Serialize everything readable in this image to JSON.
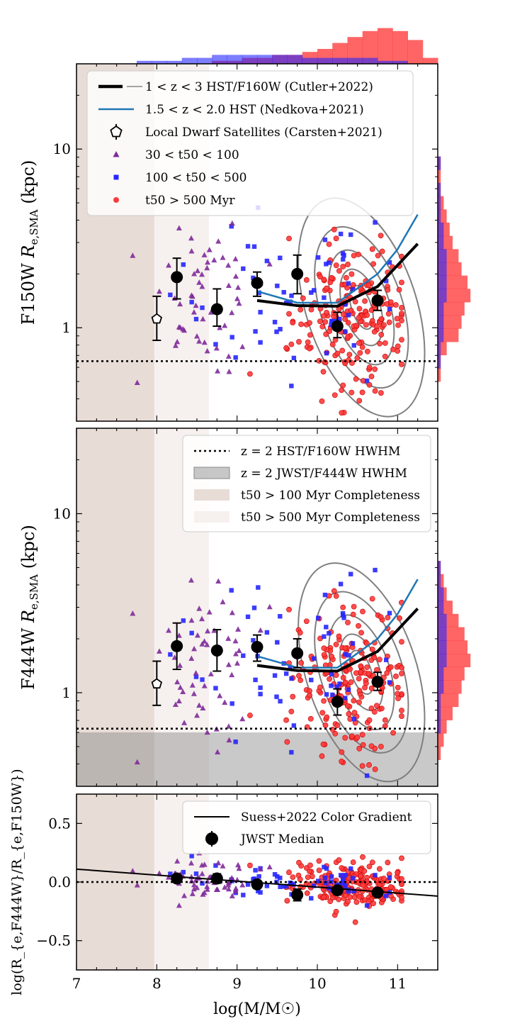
{
  "chart_data": [
    {
      "type": "scatter",
      "panel": "top",
      "ylabel": "F150W R_{e,SMA} (kpc)",
      "ylabel_parts": {
        "band": "F150W",
        "sym": "R",
        "sub": "e,SMA",
        "unit": "(kpc)"
      },
      "y_log": true,
      "ylim": [
        0.3,
        30
      ],
      "xlim": [
        7,
        11.5
      ],
      "yticks": [
        {
          "v": 1,
          "label": "1"
        },
        {
          "v": 10,
          "label": "10"
        }
      ],
      "hwhm_line": 0.65,
      "legend": [
        {
          "kind": "thickline",
          "text": "1 < z < 3  HST/F160W (Cutler+2022)"
        },
        {
          "kind": "blueline",
          "text": "1.5 < z < 2.0  HST (Nedkova+2021)"
        },
        {
          "kind": "pentagon",
          "text": "Local Dwarf Satellites (Carsten+2021)"
        },
        {
          "kind": "triangle",
          "text": "30 < t50 < 100"
        },
        {
          "kind": "square",
          "text": "100 < t50 < 500"
        },
        {
          "kind": "circle",
          "text": "t50 > 500 Myr"
        }
      ],
      "cutler": {
        "x": [
          9.25,
          9.75,
          10.25,
          10.75,
          11.25
        ],
        "y": [
          1.42,
          1.33,
          1.32,
          1.7,
          2.95
        ]
      },
      "nedkova": {
        "x": [
          9.25,
          9.75,
          10.25,
          10.75,
          11.0,
          11.25
        ],
        "y": [
          1.6,
          1.38,
          1.38,
          2.0,
          2.75,
          4.3
        ]
      },
      "dwarf": {
        "x": 8.0,
        "y": 1.12,
        "ylo": 0.85,
        "yhi": 1.5
      },
      "medians": [
        {
          "x": 8.25,
          "y": 1.92,
          "ylo": 1.45,
          "yhi": 2.45
        },
        {
          "x": 8.75,
          "y": 1.27,
          "ylo": 1.02,
          "yhi": 1.65
        },
        {
          "x": 9.25,
          "y": 1.78,
          "ylo": 1.5,
          "yhi": 2.05
        },
        {
          "x": 9.75,
          "y": 2.0,
          "ylo": 1.55,
          "yhi": 2.55
        },
        {
          "x": 10.25,
          "y": 1.02,
          "ylo": 0.88,
          "yhi": 1.22
        },
        {
          "x": 10.75,
          "y": 1.42,
          "ylo": 1.25,
          "yhi": 1.62
        }
      ]
    },
    {
      "type": "scatter",
      "panel": "middle",
      "ylabel": "F444W R_{e,SMA} (kpc)",
      "ylabel_parts": {
        "band": "F444W",
        "sym": "R",
        "sub": "e,SMA",
        "unit": "(kpc)"
      },
      "y_log": true,
      "ylim": [
        0.3,
        30
      ],
      "xlim": [
        7,
        11.5
      ],
      "yticks": [
        {
          "v": 1,
          "label": "1"
        },
        {
          "v": 10,
          "label": "10"
        }
      ],
      "hwhm_line": 0.63,
      "jwst_hwhm_band": 0.6,
      "legend": [
        {
          "kind": "dotted",
          "text": "z = 2 HST/F160W HWHM"
        },
        {
          "kind": "graybox",
          "text": "z = 2 JWST/F444W HWHM"
        },
        {
          "kind": "darkbox",
          "text": "t50 > 100 Myr Completeness"
        },
        {
          "kind": "lightbox",
          "text": "t50 > 500 Myr Completeness"
        }
      ],
      "cutler": {
        "x": [
          9.25,
          9.75,
          10.25,
          10.75,
          11.25
        ],
        "y": [
          1.42,
          1.33,
          1.32,
          1.7,
          2.95
        ]
      },
      "nedkova": {
        "x": [
          9.25,
          9.75,
          10.25,
          10.75,
          11.0,
          11.25
        ],
        "y": [
          1.6,
          1.38,
          1.38,
          2.0,
          2.75,
          4.3
        ]
      },
      "dwarf": {
        "x": 8.0,
        "y": 1.12,
        "ylo": 0.85,
        "yhi": 1.5
      },
      "medians": [
        {
          "x": 8.25,
          "y": 1.82,
          "ylo": 1.35,
          "yhi": 2.45
        },
        {
          "x": 8.75,
          "y": 1.72,
          "ylo": 1.32,
          "yhi": 2.25
        },
        {
          "x": 9.25,
          "y": 1.8,
          "ylo": 1.5,
          "yhi": 2.1
        },
        {
          "x": 9.75,
          "y": 1.66,
          "ylo": 1.38,
          "yhi": 2.0
        },
        {
          "x": 10.25,
          "y": 0.89,
          "ylo": 0.75,
          "yhi": 1.05
        },
        {
          "x": 10.75,
          "y": 1.15,
          "ylo": 1.03,
          "yhi": 1.3
        }
      ]
    },
    {
      "type": "scatter",
      "panel": "bottom",
      "xlabel": "log(M/M☉)",
      "ylabel": "log(R_{e,F444W}/R_{e,F150W})",
      "ylim": [
        -0.75,
        0.75
      ],
      "xlim": [
        7,
        11.5
      ],
      "xticks": [
        {
          "v": 7,
          "label": "7"
        },
        {
          "v": 8,
          "label": "8"
        },
        {
          "v": 9,
          "label": "9"
        },
        {
          "v": 10,
          "label": "10"
        },
        {
          "v": 11,
          "label": "11"
        }
      ],
      "yticks": [
        {
          "v": 0.5,
          "label": "0.5"
        },
        {
          "v": 0.0,
          "label": "0.0"
        },
        {
          "v": -0.5,
          "label": "−0.5"
        }
      ],
      "zero_line": 0.0,
      "legend": [
        {
          "kind": "line",
          "text": "Suess+2022 Color Gradient"
        },
        {
          "kind": "bigdot",
          "text": "JWST Median"
        }
      ],
      "gradient_line": {
        "x": [
          7,
          11.5
        ],
        "y": [
          0.11,
          -0.12
        ]
      },
      "medians": [
        {
          "x": 8.25,
          "y": 0.03,
          "ylo": 0.0,
          "yhi": 0.06
        },
        {
          "x": 8.75,
          "y": 0.03,
          "ylo": -0.01,
          "yhi": 0.07
        },
        {
          "x": 9.25,
          "y": -0.02,
          "ylo": -0.04,
          "yhi": 0.0
        },
        {
          "x": 9.75,
          "y": -0.11,
          "ylo": -0.16,
          "yhi": -0.06
        },
        {
          "x": 10.25,
          "y": -0.07,
          "ylo": -0.09,
          "yhi": -0.04
        },
        {
          "x": 10.75,
          "y": -0.09,
          "ylo": -0.11,
          "yhi": -0.07
        }
      ]
    }
  ],
  "completeness": {
    "t50_100_limit": 7.97,
    "t50_500_limit": 8.65
  },
  "colors": {
    "red": "#ff3a3a",
    "blue": "#2626ff",
    "purple": "#7f2a9a",
    "cutler": "#000000",
    "nedkova": "#1f77b4",
    "contour": "#7f7f7f",
    "band_dark": "#e8dcd6",
    "band_light": "#f6f1ee",
    "hwhm_gray": "#c8c8c8"
  }
}
